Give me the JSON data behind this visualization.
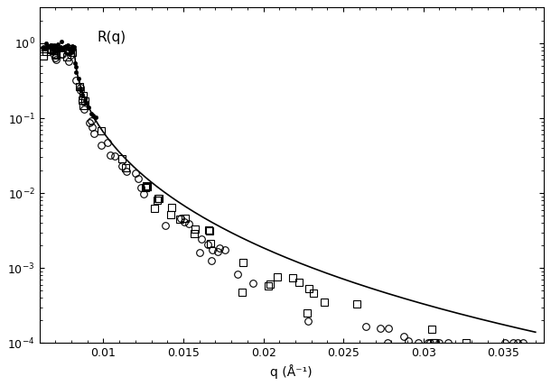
{
  "ylabel": "R(q)",
  "xlabel": "q (Å⁻¹)",
  "xlim": [
    0.006,
    0.0375
  ],
  "ylim": [
    0.0001,
    3.0
  ],
  "xticks": [
    0.01,
    0.015,
    0.02,
    0.025,
    0.03,
    0.035
  ],
  "background_color": "#ffffff",
  "line_color": "#000000",
  "circle_color": "#000000",
  "square_color": "#000000",
  "filled_color": "#000000",
  "qc": 0.0082,
  "line_scale": 0.88
}
